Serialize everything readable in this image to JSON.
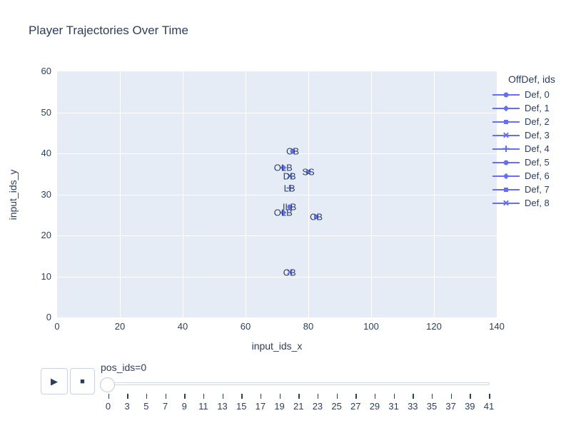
{
  "title": {
    "text": "Player Trajectories Over Time"
  },
  "axes": {
    "x": {
      "label": "input_ids_x",
      "ticks": [
        0,
        20,
        40,
        60,
        80,
        100,
        120,
        140
      ],
      "range": [
        0,
        140
      ]
    },
    "y": {
      "label": "input_ids_y",
      "ticks": [
        0,
        10,
        20,
        30,
        40,
        50,
        60
      ],
      "range": [
        0,
        60
      ]
    }
  },
  "legend": {
    "title": "OffDef, ids",
    "items": [
      {
        "label": "Def, 0",
        "symbol": "circle"
      },
      {
        "label": "Def, 1",
        "symbol": "diamond"
      },
      {
        "label": "Def, 2",
        "symbol": "square"
      },
      {
        "label": "Def, 3",
        "symbol": "x"
      },
      {
        "label": "Def, 4",
        "symbol": "cross"
      },
      {
        "label": "Def, 5",
        "symbol": "circle"
      },
      {
        "label": "Def, 6",
        "symbol": "diamond"
      },
      {
        "label": "Def, 7",
        "symbol": "square"
      },
      {
        "label": "Def, 8",
        "symbol": "x"
      }
    ]
  },
  "chart_data": {
    "type": "scatter",
    "title": "Player Trajectories Over Time",
    "xlabel": "input_ids_x",
    "ylabel": "input_ids_y",
    "xlim": [
      0,
      140
    ],
    "ylim": [
      0,
      60
    ],
    "grid": true,
    "legend_title": "OffDef, ids",
    "legend_position": "right",
    "series": [
      {
        "name": "Def, 0",
        "symbol": "circle",
        "label": "CB",
        "x": 75,
        "y": 40.5
      },
      {
        "name": "Def, 1",
        "symbol": "diamond",
        "label": "OLB",
        "x": 72,
        "y": 36.5
      },
      {
        "name": "Def, 2",
        "symbol": "square",
        "label": "SS",
        "x": 80,
        "y": 35.5
      },
      {
        "name": "Def, 3",
        "symbol": "x",
        "label": "DB",
        "x": 74,
        "y": 34.5
      },
      {
        "name": "Def, 4",
        "symbol": "cross",
        "label": "LB",
        "x": 74,
        "y": 31.5
      },
      {
        "name": "Def, 5",
        "symbol": "circle",
        "label": "ILB",
        "x": 74,
        "y": 27
      },
      {
        "name": "Def, 6",
        "symbol": "diamond",
        "label": "OLB",
        "x": 72,
        "y": 25.5
      },
      {
        "name": "Def, 7",
        "symbol": "square",
        "label": "CB",
        "x": 82.5,
        "y": 24.5
      },
      {
        "name": "Def, 8",
        "symbol": "x",
        "label": "CB",
        "x": 74,
        "y": 11
      }
    ]
  },
  "controls": {
    "play_icon": "▶",
    "stop_icon": "■",
    "slider": {
      "label": "pos_ids=0",
      "value": 0,
      "tick_labels": [
        "0",
        "3",
        "5",
        "7",
        "9",
        "11",
        "13",
        "15",
        "17",
        "19",
        "21",
        "23",
        "25",
        "27",
        "29",
        "31",
        "33",
        "35",
        "37",
        "39",
        "41"
      ]
    }
  },
  "colors": {
    "accent": "#636efa",
    "text": "#2a3f5f",
    "plot_bg": "#e5ecf6",
    "grid": "#ffffff",
    "paper_bg": "#ffffff"
  }
}
